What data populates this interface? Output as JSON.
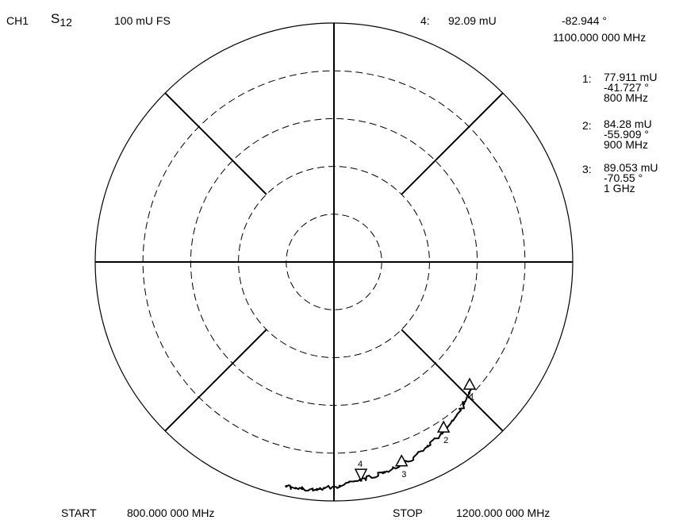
{
  "header": {
    "channel": "CH1",
    "param_base": "S",
    "param_sub": "12",
    "scale": "100 mU  FS",
    "active_marker_label": "4:",
    "active_marker_mag": "92.09  mU",
    "active_marker_phase": "-82.944 °",
    "active_marker_freq": "1100.000  000  MHz"
  },
  "markers": [
    {
      "label": "1:",
      "mag": "77.911  mU",
      "phase": "-41.727 °",
      "freq": "800 MHz"
    },
    {
      "label": "2:",
      "mag": "84.28  mU",
      "phase": "-55.909 °",
      "freq": "900 MHz"
    },
    {
      "label": "3:",
      "mag": "89.053  mU",
      "phase": "-70.55 °",
      "freq": "1 GHz"
    }
  ],
  "footer": {
    "start_label": "START",
    "start_value": "800.000  000  MHz",
    "stop_label": "STOP",
    "stop_value": "1200.000  000  MHz"
  },
  "chart_data": {
    "type": "scatter",
    "coordinate_system": "polar",
    "full_scale": 100,
    "ring_count": 5,
    "series": [
      {
        "points": [
          {
            "mag": 77.911,
            "phase": -41.727
          },
          {
            "mag": 80.5,
            "phase": -47.5
          },
          {
            "mag": 84.28,
            "phase": -55.909
          },
          {
            "mag": 86.5,
            "phase": -63.0
          },
          {
            "mag": 89.053,
            "phase": -70.55
          },
          {
            "mag": 90.5,
            "phase": -76.5
          },
          {
            "mag": 92.09,
            "phase": -82.944
          },
          {
            "mag": 93.8,
            "phase": -88.5
          },
          {
            "mag": 95.0,
            "phase": -93.5
          },
          {
            "mag": 95.8,
            "phase": -98.0
          },
          {
            "mag": 96.0,
            "phase": -102.0
          }
        ]
      }
    ],
    "markers": [
      {
        "id": "1",
        "mag": 77.911,
        "phase": -41.727
      },
      {
        "id": "2",
        "mag": 84.28,
        "phase": -55.909
      },
      {
        "id": "3",
        "mag": 89.053,
        "phase": -70.55
      },
      {
        "id": "4",
        "mag": 92.09,
        "phase": -82.944
      }
    ]
  }
}
